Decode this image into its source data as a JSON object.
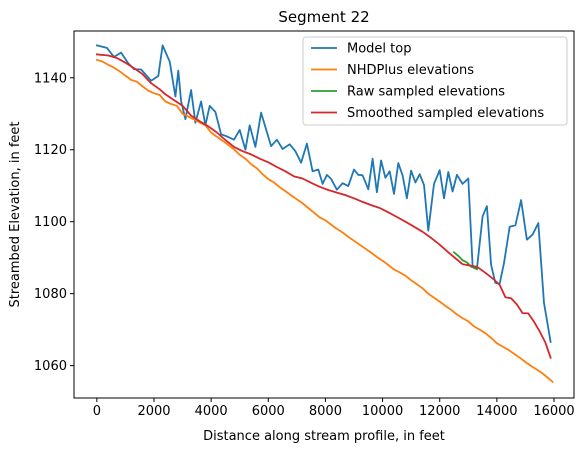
{
  "chart_data": {
    "type": "line",
    "title": "Segment 22",
    "xlabel": "Distance along stream profile, in feet",
    "ylabel": "Streambed Elevation, in feet",
    "xlim": [
      -800,
      16700
    ],
    "ylim": [
      1051,
      1153
    ],
    "xticks": [
      0,
      2000,
      4000,
      6000,
      8000,
      10000,
      12000,
      14000,
      16000
    ],
    "yticks": [
      1060,
      1080,
      1100,
      1120,
      1140
    ],
    "legend_position": "upper right",
    "grid": false,
    "series": [
      {
        "name": "Model top",
        "color": "#1f77b4",
        "x": [
          0,
          350,
          600,
          850,
          1100,
          1300,
          1550,
          1900,
          2150,
          2300,
          2550,
          2750,
          2850,
          2950,
          3100,
          3300,
          3450,
          3650,
          3800,
          3950,
          4150,
          4350,
          4550,
          4800,
          5000,
          5200,
          5350,
          5550,
          5750,
          5900,
          6100,
          6300,
          6500,
          6750,
          6950,
          7150,
          7350,
          7550,
          7750,
          7900,
          8050,
          8200,
          8400,
          8600,
          8800,
          9000,
          9150,
          9300,
          9500,
          9650,
          9800,
          9950,
          10100,
          10250,
          10400,
          10550,
          10700,
          10850,
          11000,
          11150,
          11300,
          11450,
          11600,
          11800,
          12000,
          12150,
          12300,
          12450,
          12600,
          12800,
          13000,
          13150,
          13300,
          13500,
          13650,
          13800,
          13950,
          14100,
          14250,
          14450,
          14650,
          14850,
          15050,
          15250,
          15450,
          15650,
          15880
        ],
        "y": [
          1149,
          1148.3,
          1145.8,
          1147,
          1144,
          1142.4,
          1142.3,
          1139.2,
          1140.5,
          1149,
          1144.5,
          1134.8,
          1142,
          1133.5,
          1128.5,
          1136.6,
          1127.5,
          1133.4,
          1126.8,
          1132.2,
          1130.5,
          1124.3,
          1123.7,
          1122.8,
          1125.5,
          1120,
          1126.8,
          1120.8,
          1130.3,
          1126.3,
          1121,
          1122.8,
          1120.2,
          1121.5,
          1119.6,
          1116.4,
          1121.7,
          1114,
          1114.5,
          1110.5,
          1113,
          1111.9,
          1108.9,
          1110.7,
          1109.9,
          1114.5,
          1113,
          1112.9,
          1109,
          1117.5,
          1108.2,
          1117,
          1112.2,
          1114,
          1107.7,
          1116.3,
          1112.8,
          1106.5,
          1114.2,
          1110.9,
          1113.2,
          1110.2,
          1097.5,
          1110.5,
          1114.3,
          1106.5,
          1113.8,
          1108.4,
          1113,
          1110.5,
          1112,
          1087.7,
          1086.8,
          1101.5,
          1104.3,
          1088,
          1083,
          1082.8,
          1088.5,
          1098.6,
          1099,
          1106,
          1095,
          1096.4,
          1099.6,
          1077.4,
          1066.6
        ]
      },
      {
        "name": "NHDPlus elevations",
        "color": "#ff7f0e",
        "x": [
          0,
          200,
          400,
          600,
          800,
          1000,
          1200,
          1400,
          1600,
          1800,
          2000,
          2200,
          2400,
          2600,
          2800,
          3000,
          3200,
          3400,
          3600,
          3800,
          4000,
          4200,
          4400,
          4600,
          4800,
          5000,
          5200,
          5400,
          5600,
          5800,
          6000,
          6200,
          6400,
          6600,
          6800,
          7000,
          7200,
          7400,
          7600,
          7800,
          8000,
          8200,
          8400,
          8600,
          8800,
          9000,
          9200,
          9400,
          9600,
          9800,
          10000,
          10200,
          10400,
          10600,
          10800,
          11000,
          11200,
          11400,
          11600,
          11800,
          12000,
          12200,
          12400,
          12600,
          12800,
          13000,
          13200,
          13400,
          13600,
          13800,
          14000,
          14200,
          14400,
          14600,
          14800,
          15000,
          15200,
          15400,
          15600,
          15800,
          15950
        ],
        "y": [
          1145,
          1144.5,
          1143.6,
          1142.8,
          1141.8,
          1140.6,
          1139.4,
          1138.9,
          1137.6,
          1136.4,
          1135.7,
          1135.2,
          1133.4,
          1132.7,
          1132.2,
          1130,
          1129.2,
          1128.4,
          1127.6,
          1126.8,
          1124.8,
          1123.6,
          1122.5,
          1121.3,
          1120.1,
          1118.6,
          1117.5,
          1116,
          1114.8,
          1113.2,
          1111.8,
          1110.9,
          1109.6,
          1108.5,
          1107.3,
          1106.2,
          1105.1,
          1103.8,
          1102.5,
          1101.2,
          1100.4,
          1099.2,
          1098,
          1097,
          1095.8,
          1094.7,
          1093.6,
          1092.5,
          1091.4,
          1090.2,
          1089.1,
          1088,
          1086.7,
          1085.9,
          1085,
          1083.7,
          1082.6,
          1081.5,
          1080,
          1078.9,
          1077.8,
          1076.6,
          1075.5,
          1074.2,
          1073.2,
          1072.3,
          1070.9,
          1070,
          1069,
          1067.7,
          1066.2,
          1065.3,
          1064.4,
          1063.3,
          1062.2,
          1061,
          1059.9,
          1058.9,
          1057.8,
          1056.5,
          1055.5
        ]
      },
      {
        "name": "Raw sampled elevations",
        "color": "#2ca02c",
        "x": [
          12500,
          12650,
          12800,
          12950,
          13100,
          13300
        ],
        "y": [
          1091.5,
          1090.5,
          1089.3,
          1088.7,
          1087.5,
          1086.8
        ]
      },
      {
        "name": "Smoothed sampled elevations",
        "color": "#d62728",
        "x": [
          0,
          400,
          700,
          1000,
          1300,
          1600,
          1900,
          2200,
          2400,
          2700,
          3000,
          3300,
          3600,
          3900,
          4200,
          4500,
          4800,
          5100,
          5400,
          5700,
          6000,
          6300,
          6600,
          6900,
          7200,
          7500,
          7800,
          8100,
          8400,
          8700,
          9000,
          9300,
          9600,
          9900,
          10200,
          10500,
          10800,
          11100,
          11400,
          11700,
          12000,
          12300,
          12600,
          12800,
          13000,
          13300,
          13600,
          13900,
          14100,
          14300,
          14500,
          14700,
          14900,
          15100,
          15300,
          15500,
          15700,
          15880
        ],
        "y": [
          1146.5,
          1146.2,
          1145.5,
          1144.2,
          1142.7,
          1141,
          1138.5,
          1136.8,
          1135.4,
          1133.8,
          1132.2,
          1129.5,
          1127.9,
          1126.5,
          1124.8,
          1122.7,
          1120.8,
          1119.6,
          1118.7,
          1117.5,
          1116.5,
          1115.2,
          1114,
          1112.6,
          1112,
          1110.8,
          1109.7,
          1108.8,
          1108.1,
          1107.4,
          1106.5,
          1105.5,
          1104.6,
          1103.8,
          1102.6,
          1101.3,
          1100,
          1098.6,
          1097.2,
          1095.5,
          1093.6,
          1091.5,
          1089.5,
          1088.2,
          1087.9,
          1087.5,
          1085.8,
          1083.9,
          1082.4,
          1079,
          1078.7,
          1077,
          1074.6,
          1074.5,
          1072.2,
          1069.5,
          1066.4,
          1062.2
        ]
      }
    ]
  }
}
